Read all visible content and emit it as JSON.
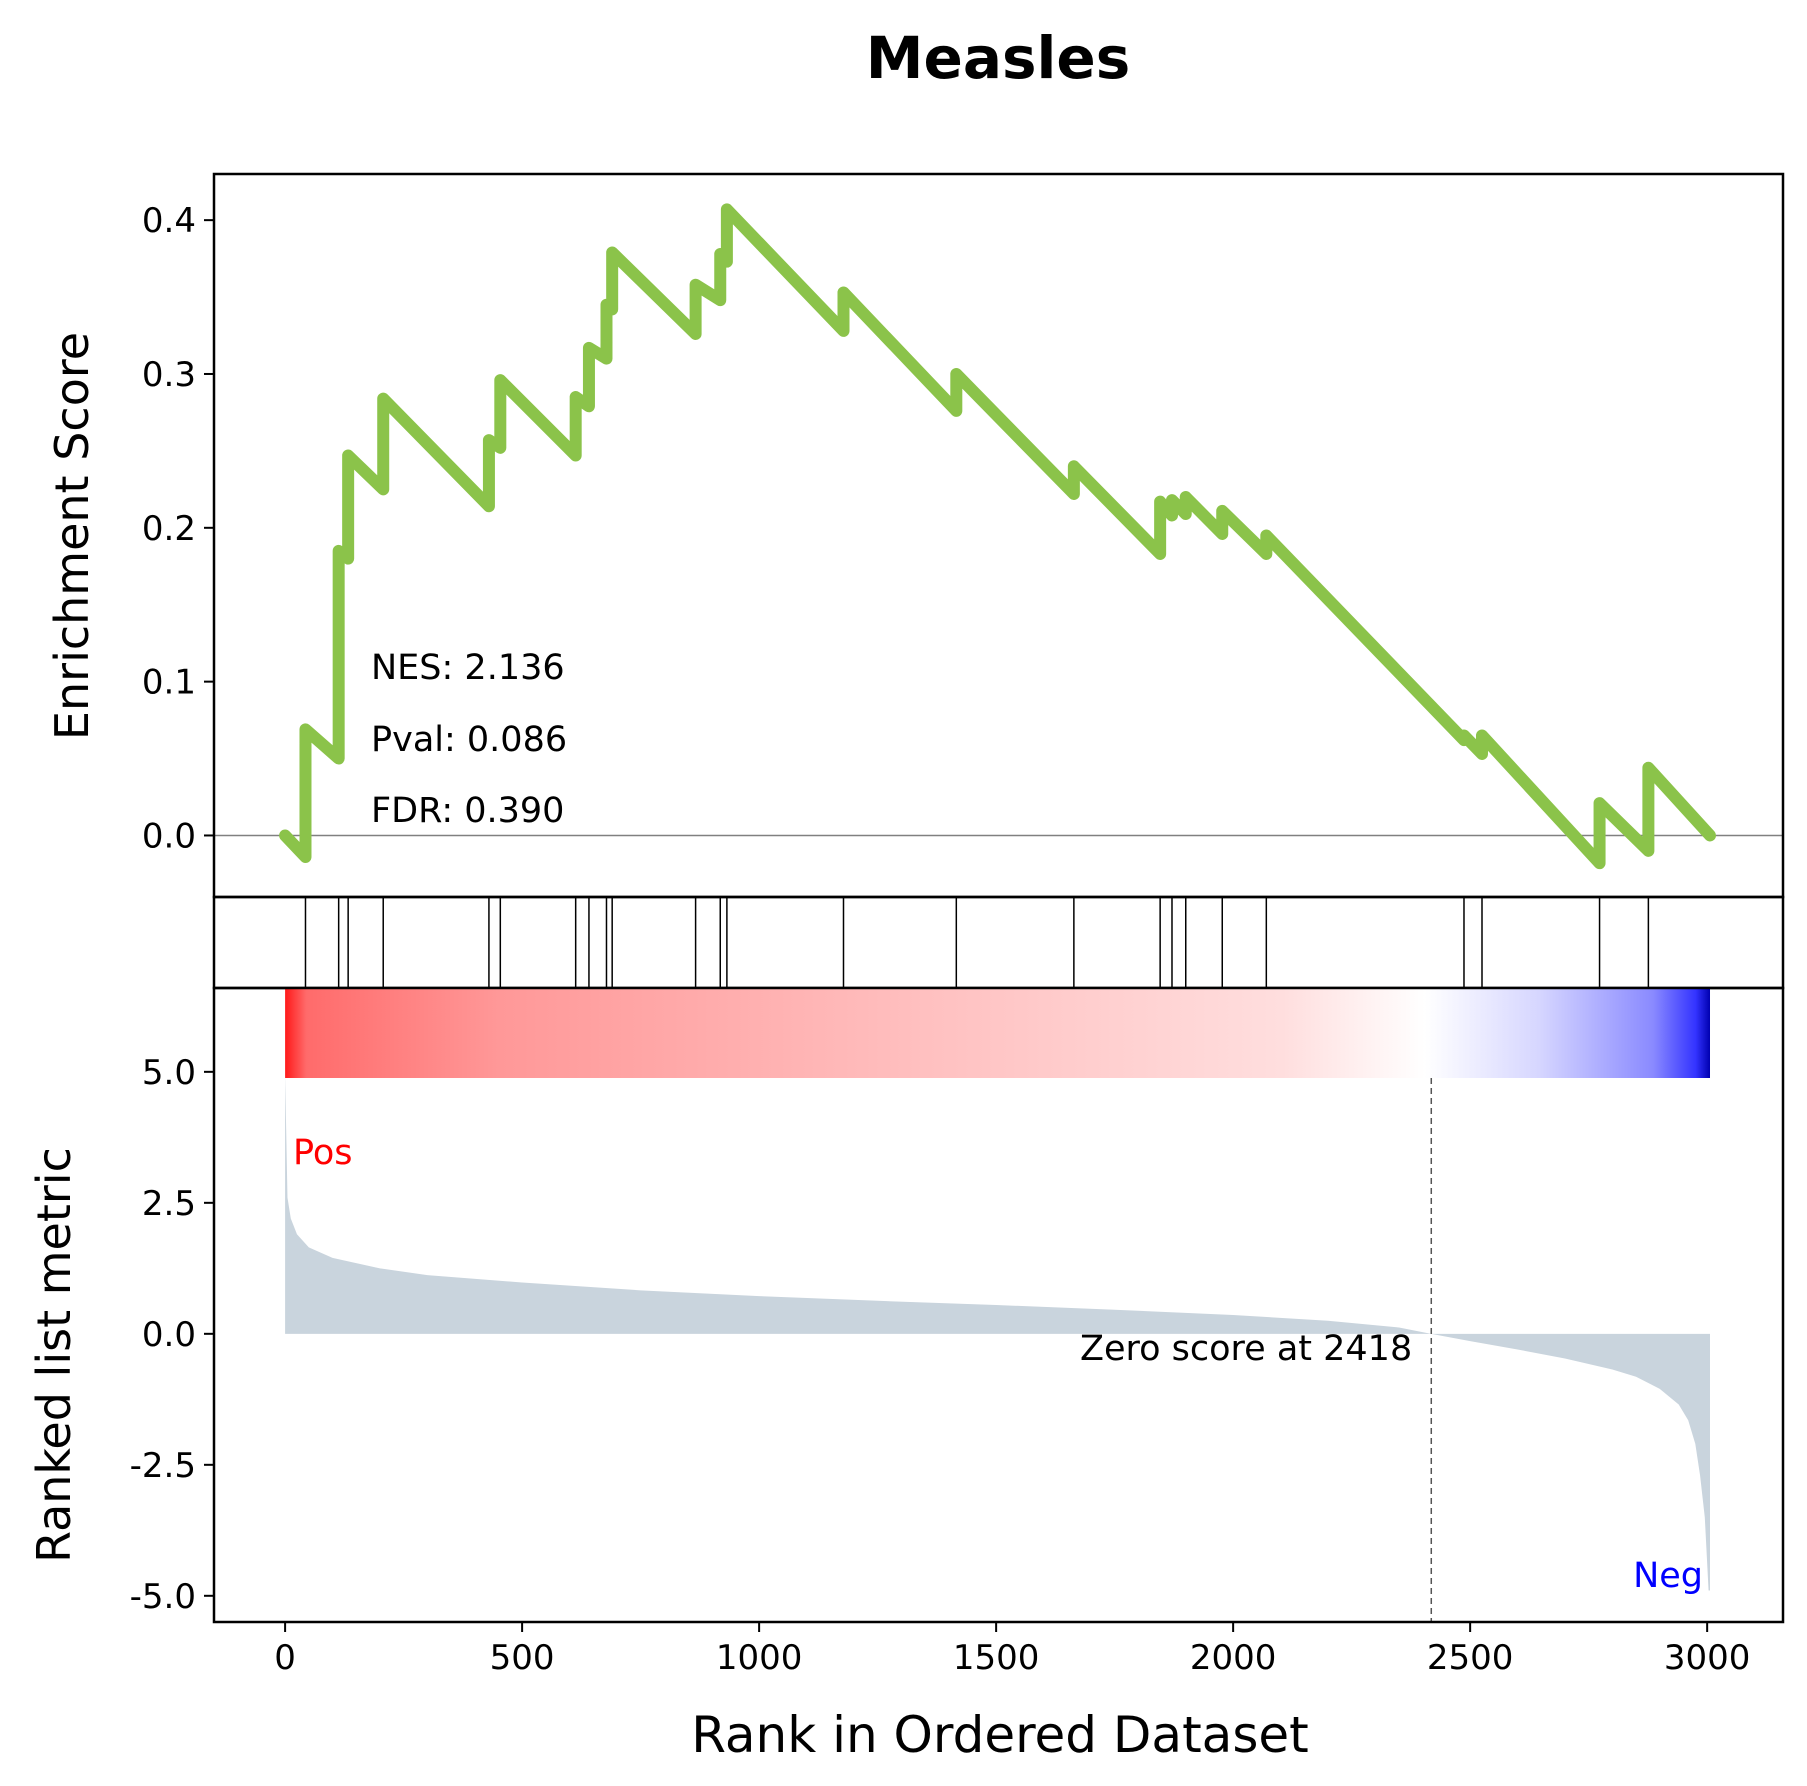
{
  "chart_data": {
    "type": "line",
    "title": "Measles",
    "xlabel": "Rank in Ordered Dataset",
    "xlim": [
      -150,
      3160
    ],
    "x_ticks": [
      0,
      500,
      1000,
      1500,
      2000,
      2500,
      3000
    ],
    "colors": {
      "es_line": "#8bc34a",
      "metric_fill": "#c9d4dd",
      "pos": "#ff0000",
      "neg": "#0000ff",
      "frame": "#000000"
    },
    "enrichment": {
      "ylabel": "Enrichment Score",
      "ylim": [
        -0.04,
        0.43
      ],
      "y_ticks": [
        0.0,
        0.1,
        0.2,
        0.3,
        0.4
      ],
      "y_tick_labels": [
        "0.0",
        "0.1",
        "0.2",
        "0.3",
        "0.4"
      ],
      "points": [
        [
          0,
          0.0
        ],
        [
          43,
          -0.014
        ],
        [
          43,
          0.069
        ],
        [
          113,
          0.05
        ],
        [
          113,
          0.185
        ],
        [
          133,
          0.18
        ],
        [
          133,
          0.247
        ],
        [
          207,
          0.225
        ],
        [
          207,
          0.284
        ],
        [
          430,
          0.214
        ],
        [
          430,
          0.257
        ],
        [
          454,
          0.252
        ],
        [
          454,
          0.296
        ],
        [
          613,
          0.247
        ],
        [
          613,
          0.285
        ],
        [
          641,
          0.279
        ],
        [
          641,
          0.317
        ],
        [
          678,
          0.31
        ],
        [
          678,
          0.345
        ],
        [
          690,
          0.342
        ],
        [
          690,
          0.379
        ],
        [
          866,
          0.326
        ],
        [
          866,
          0.358
        ],
        [
          918,
          0.348
        ],
        [
          918,
          0.378
        ],
        [
          932,
          0.373
        ],
        [
          932,
          0.407
        ],
        [
          1178,
          0.328
        ],
        [
          1178,
          0.353
        ],
        [
          1416,
          0.276
        ],
        [
          1416,
          0.3
        ],
        [
          1664,
          0.222
        ],
        [
          1664,
          0.24
        ],
        [
          1846,
          0.183
        ],
        [
          1846,
          0.217
        ],
        [
          1871,
          0.208
        ],
        [
          1871,
          0.218
        ],
        [
          1900,
          0.209
        ],
        [
          1900,
          0.22
        ],
        [
          1977,
          0.196
        ],
        [
          1977,
          0.211
        ],
        [
          2070,
          0.183
        ],
        [
          2070,
          0.195
        ],
        [
          2487,
          0.062
        ],
        [
          2487,
          0.065
        ],
        [
          2525,
          0.053
        ],
        [
          2525,
          0.065
        ],
        [
          2773,
          -0.018
        ],
        [
          2773,
          0.021
        ],
        [
          2876,
          -0.01
        ],
        [
          2876,
          0.044
        ],
        [
          3006,
          0.0
        ]
      ],
      "stats": {
        "nes": "NES: 2.136",
        "pval": "Pval: 0.086",
        "fdr": "FDR: 0.390"
      }
    },
    "hits": [
      43,
      113,
      133,
      207,
      430,
      454,
      613,
      641,
      678,
      690,
      866,
      918,
      932,
      1178,
      1416,
      1664,
      1846,
      1871,
      1900,
      1977,
      2070,
      2487,
      2525,
      2773,
      2876
    ],
    "ranked_metric": {
      "ylabel": "Ranked list metric",
      "ylim": [
        -5.5,
        6.6
      ],
      "y_ticks": [
        5.0,
        2.5,
        0.0,
        -2.5,
        -5.0
      ],
      "y_tick_labels": [
        "5.0",
        "2.5",
        "0.0",
        "-2.5",
        "-5.0"
      ],
      "values": [
        [
          0,
          4.95
        ],
        [
          5,
          2.6
        ],
        [
          12,
          2.2
        ],
        [
          25,
          1.9
        ],
        [
          50,
          1.65
        ],
        [
          100,
          1.45
        ],
        [
          200,
          1.25
        ],
        [
          300,
          1.12
        ],
        [
          500,
          0.98
        ],
        [
          750,
          0.83
        ],
        [
          1000,
          0.72
        ],
        [
          1250,
          0.63
        ],
        [
          1500,
          0.55
        ],
        [
          1750,
          0.46
        ],
        [
          2000,
          0.36
        ],
        [
          2200,
          0.25
        ],
        [
          2350,
          0.12
        ],
        [
          2418,
          0.0
        ],
        [
          2500,
          -0.14
        ],
        [
          2600,
          -0.3
        ],
        [
          2700,
          -0.47
        ],
        [
          2800,
          -0.68
        ],
        [
          2850,
          -0.82
        ],
        [
          2900,
          -1.05
        ],
        [
          2940,
          -1.35
        ],
        [
          2960,
          -1.65
        ],
        [
          2975,
          -2.1
        ],
        [
          2985,
          -2.7
        ],
        [
          2995,
          -3.5
        ],
        [
          3003,
          -4.9
        ],
        [
          3006,
          -4.9
        ]
      ],
      "pos_label": "Pos",
      "neg_label": "Neg",
      "zero_cross": 2418,
      "zero_label": "Zero score at 2418"
    }
  }
}
